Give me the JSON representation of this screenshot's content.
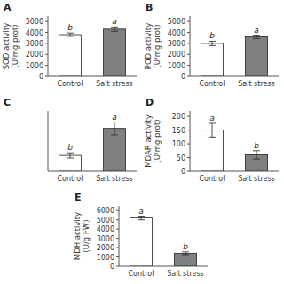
{
  "chart_data": [
    {
      "type": "bar",
      "title": "A",
      "ylabel": "SOD activity\n(U/mg prot)",
      "categories": [
        "Control",
        "Salt stress"
      ],
      "values": [
        3800,
        4300
      ],
      "errors": [
        150,
        200
      ],
      "colors": [
        "white",
        "#808080"
      ],
      "annotations": [
        "b",
        "a"
      ],
      "ylim": [
        0,
        5500
      ],
      "yticks": [
        0,
        1000,
        2000,
        3000,
        4000,
        5000
      ]
    },
    {
      "type": "bar",
      "title": "B",
      "ylabel": "POD activity\n(U/mg prot)",
      "categories": [
        "Control",
        "Salt stress"
      ],
      "values": [
        3000,
        3600
      ],
      "errors": [
        200,
        150
      ],
      "colors": [
        "white",
        "#808080"
      ],
      "annotations": [
        "b",
        "a"
      ],
      "ylim": [
        0,
        5500
      ],
      "yticks": [
        0,
        1000,
        2000,
        3000,
        4000,
        5000
      ]
    },
    {
      "type": "bar",
      "title": "C",
      "categories": [
        "Control",
        "Salt stress"
      ],
      "values": [
        500,
        1350
      ],
      "errors": [
        80,
        200
      ],
      "colors": [
        "white",
        "#808080"
      ],
      "annotations": [
        "b",
        "a"
      ],
      "ylim": [
        0,
        1900
      ],
      "tick_labels": "x"
    },
    {
      "type": "bar",
      "title": "D",
      "ylabel": "MDAR activity\n(U/mg prot)",
      "categories": [
        "Control",
        "Salt stress"
      ],
      "values": [
        150,
        60
      ],
      "errors": [
        25,
        15
      ],
      "colors": [
        "white",
        "#808080"
      ],
      "annotations": [
        "a",
        "b"
      ],
      "ylim": [
        0,
        220
      ],
      "yticks": [
        0,
        50,
        100,
        150,
        200
      ]
    },
    {
      "type": "bar",
      "title": "E",
      "ylabel": "MDH activity\n(U/g FW)",
      "categories": [
        "Control",
        "Salt stress"
      ],
      "values": [
        5200,
        1400
      ],
      "errors": [
        200,
        150
      ],
      "colors": [
        "white",
        "#808080"
      ],
      "annotations": [
        "a",
        "b"
      ],
      "ylim": [
        0,
        6500
      ],
      "yticks": [
        0,
        1000,
        2000,
        3000,
        4000,
        5000,
        6000
      ]
    }
  ]
}
